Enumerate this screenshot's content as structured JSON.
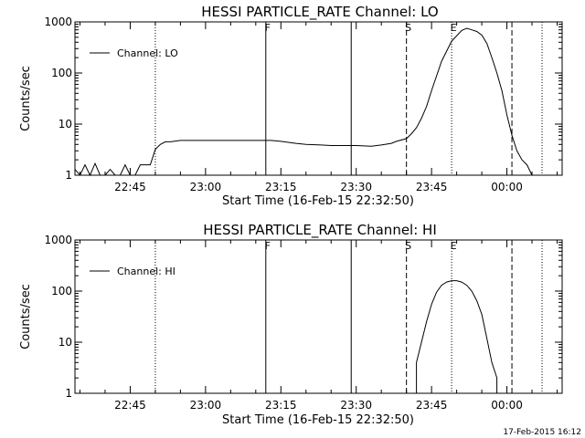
{
  "chart_data": [
    {
      "type": "line",
      "title": "HESSI PARTICLE_RATE Channel: LO",
      "xlabel": "Start Time (16-Feb-15 22:32:50)",
      "ylabel": "Counts/sec",
      "y_scale": "log",
      "ylim": [
        1,
        1000
      ],
      "xlim": [
        "22:34",
        "00:11"
      ],
      "x_ticks": [
        "22:45",
        "23:00",
        "23:15",
        "23:30",
        "23:45",
        "00:00"
      ],
      "y_ticks": [
        "1",
        "10",
        "100",
        "1000"
      ],
      "grid": false,
      "legend": {
        "position": "top-left",
        "entries": [
          "Channel: LO"
        ]
      },
      "series": [
        {
          "name": "Channel: LO",
          "x": [
            "22:34",
            "22:35",
            "22:36",
            "22:37",
            "22:38",
            "22:39",
            "22:40",
            "22:41",
            "22:42",
            "22:43",
            "22:44",
            "22:45",
            "22:46",
            "22:47",
            "22:48",
            "22:49",
            "22:50",
            "22:51",
            "22:52",
            "22:53",
            "22:55",
            "22:58",
            "23:00",
            "23:03",
            "23:05",
            "23:08",
            "23:10",
            "23:13",
            "23:15",
            "23:18",
            "23:20",
            "23:23",
            "23:25",
            "23:28",
            "23:30",
            "23:33",
            "23:35",
            "23:37",
            "23:38",
            "23:40",
            "23:41",
            "23:42",
            "23:43",
            "23:44",
            "23:45",
            "23:47",
            "23:49",
            "23:51",
            "23:52",
            "23:53",
            "23:54",
            "23:55",
            "23:56",
            "23:57",
            "23:58",
            "23:59",
            "00:00",
            "00:01",
            "00:02",
            "00:03",
            "00:04",
            "00:05"
          ],
          "values": [
            1.3,
            1.0,
            1.6,
            1.0,
            1.7,
            1.0,
            1.0,
            1.3,
            1.0,
            1.0,
            1.6,
            1.0,
            1.0,
            1.6,
            1.6,
            1.6,
            3.2,
            4.0,
            4.5,
            4.5,
            4.8,
            4.8,
            4.8,
            4.8,
            4.8,
            4.8,
            4.8,
            4.8,
            4.6,
            4.2,
            4.0,
            3.9,
            3.8,
            3.8,
            3.8,
            3.7,
            3.9,
            4.2,
            4.6,
            5.2,
            6.5,
            8.5,
            13,
            22,
            45,
            170,
            420,
            680,
            750,
            700,
            650,
            550,
            380,
            200,
            100,
            45,
            15,
            6,
            3,
            2,
            1.6,
            1.0
          ]
        }
      ],
      "markers": [
        "S",
        "E",
        "F"
      ]
    },
    {
      "type": "line",
      "title": "HESSI PARTICLE_RATE Channel: HI",
      "xlabel": "Start Time (16-Feb-15 22:32:50)",
      "ylabel": "Counts/sec",
      "y_scale": "log",
      "ylim": [
        1,
        1000
      ],
      "xlim": [
        "22:34",
        "00:11"
      ],
      "x_ticks": [
        "22:45",
        "23:00",
        "23:15",
        "23:30",
        "23:45",
        "00:00"
      ],
      "y_ticks": [
        "1",
        "10",
        "100",
        "1000"
      ],
      "grid": false,
      "legend": {
        "position": "top-left",
        "entries": [
          "Channel: HI"
        ]
      },
      "series": [
        {
          "name": "Channel: HI",
          "x": [
            "23:42",
            "23:42",
            "23:42",
            "23:43",
            "23:44",
            "23:45",
            "23:46",
            "23:47",
            "23:48",
            "23:49",
            "23:50",
            "23:51",
            "23:52",
            "23:53",
            "23:54",
            "23:55",
            "23:56",
            "23:57",
            "23:58",
            "23:58"
          ],
          "values": [
            1.0,
            2.0,
            4.0,
            10,
            25,
            55,
            95,
            130,
            150,
            160,
            160,
            150,
            130,
            100,
            65,
            35,
            12,
            4,
            2,
            1.0
          ]
        }
      ],
      "markers": [
        "S",
        "E",
        "F"
      ]
    }
  ],
  "footer": {
    "timestamp": "17-Feb-2015 16:12"
  }
}
